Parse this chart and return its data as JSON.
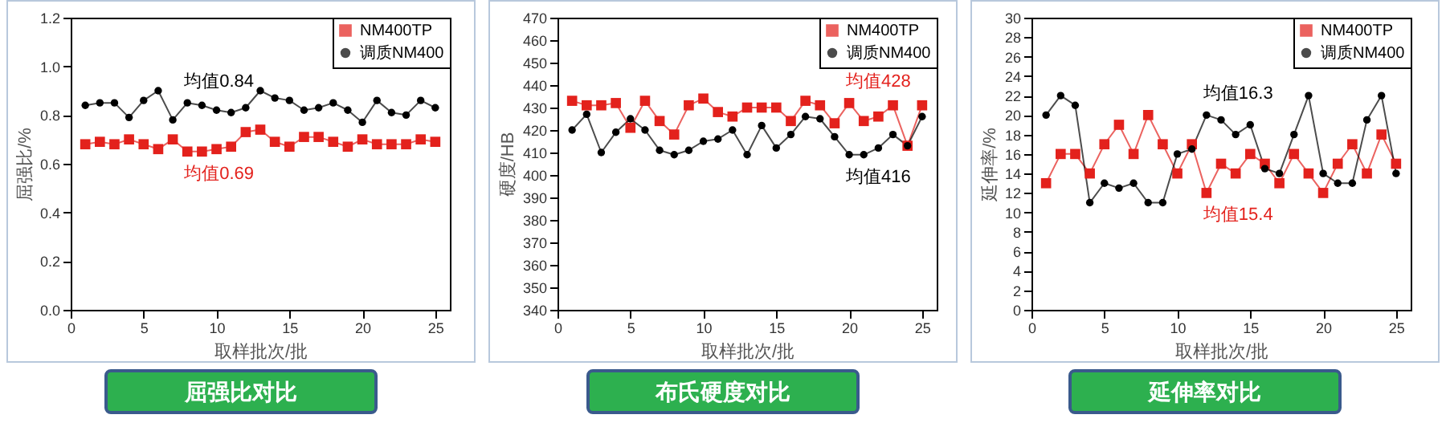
{
  "chart_data": [
    {
      "type": "line",
      "title": "屈强比对比",
      "xlabel": "取样批次/批",
      "ylabel": "屈强比/%",
      "x": [
        1,
        2,
        3,
        4,
        5,
        6,
        7,
        8,
        9,
        10,
        11,
        12,
        13,
        14,
        15,
        16,
        17,
        18,
        19,
        20,
        21,
        22,
        23,
        24,
        25
      ],
      "xlim": [
        0,
        26
      ],
      "xticks": [
        0,
        5,
        10,
        15,
        20,
        25
      ],
      "ylim": [
        0,
        1.2
      ],
      "yticks": [
        {
          "value": 0,
          "label": "0.0"
        },
        0.2,
        0.4,
        0.6,
        0.8,
        {
          "value": 1,
          "label": "1.0"
        },
        1.2
      ],
      "legend": "top right",
      "series": [
        {
          "name": "NM400TP",
          "color": "#e3211c",
          "marker": "square",
          "values": [
            0.68,
            0.69,
            0.68,
            0.7,
            0.68,
            0.66,
            0.7,
            0.65,
            0.65,
            0.66,
            0.67,
            0.73,
            0.74,
            0.69,
            0.67,
            0.71,
            0.71,
            0.69,
            0.67,
            0.7,
            0.68,
            0.68,
            0.68,
            0.7,
            0.69
          ]
        },
        {
          "name": "调质NM400",
          "color": "#000000",
          "marker": "circle",
          "values": [
            0.84,
            0.85,
            0.85,
            0.79,
            0.86,
            0.9,
            0.78,
            0.85,
            0.84,
            0.82,
            0.81,
            0.83,
            0.9,
            0.87,
            0.86,
            0.82,
            0.83,
            0.85,
            0.82,
            0.77,
            0.86,
            0.81,
            0.8,
            0.86,
            0.83
          ]
        }
      ],
      "annotations": [
        "均值0.69",
        "均值0.84"
      ]
    },
    {
      "type": "line",
      "title": "布氏硬度对比",
      "xlabel": "取样批次/批",
      "ylabel": "硬度/HB",
      "x": [
        1,
        2,
        3,
        4,
        5,
        6,
        7,
        8,
        9,
        10,
        11,
        12,
        13,
        14,
        15,
        16,
        17,
        18,
        19,
        20,
        21,
        22,
        23,
        24,
        25
      ],
      "xlim": [
        0,
        26
      ],
      "xticks": [
        0,
        5,
        10,
        15,
        20,
        25
      ],
      "ylim": [
        340,
        470
      ],
      "yticks": [
        340,
        350,
        360,
        370,
        380,
        390,
        400,
        410,
        420,
        430,
        440,
        450,
        460,
        470
      ],
      "legend": "top right",
      "series": [
        {
          "name": "NM400TP",
          "color": "#e3211c",
          "marker": "square",
          "values": [
            433,
            431,
            431,
            432,
            421,
            433,
            424,
            418,
            431,
            434,
            428,
            426,
            430,
            430,
            430,
            424,
            433,
            431,
            423,
            432,
            424,
            426,
            431,
            413,
            431
          ]
        },
        {
          "name": "调质NM400",
          "color": "#000000",
          "marker": "circle",
          "values": [
            420,
            427,
            410,
            419,
            425,
            420,
            411,
            409,
            411,
            415,
            416,
            420,
            409,
            422,
            412,
            418,
            426,
            425,
            417,
            409,
            409,
            412,
            418,
            413,
            426
          ]
        }
      ],
      "annotations": [
        "均值428",
        "均值416"
      ]
    },
    {
      "type": "line",
      "title": "延伸率对比",
      "xlabel": "取样批次/批",
      "ylabel": "延伸率/%",
      "x": [
        1,
        2,
        3,
        4,
        5,
        6,
        7,
        8,
        9,
        10,
        11,
        12,
        13,
        14,
        15,
        16,
        17,
        18,
        19,
        20,
        21,
        22,
        23,
        24,
        25
      ],
      "xlim": [
        0,
        26
      ],
      "xticks": [
        0,
        5,
        10,
        15,
        20,
        25
      ],
      "ylim": [
        0,
        30
      ],
      "yticks": [
        0,
        2,
        4,
        6,
        8,
        10,
        12,
        14,
        16,
        18,
        20,
        22,
        24,
        26,
        28,
        30
      ],
      "legend": "top right",
      "series": [
        {
          "name": "NM400TP",
          "color": "#e3211c",
          "marker": "square",
          "values": [
            13,
            16,
            16,
            14,
            17,
            19,
            16,
            20,
            17,
            14,
            17,
            12,
            15,
            14,
            16,
            15,
            13,
            16,
            14,
            12,
            15,
            17,
            14,
            18,
            15
          ]
        },
        {
          "name": "调质NM400",
          "color": "#000000",
          "marker": "circle",
          "values": [
            20,
            22,
            21,
            11,
            13,
            12.5,
            13,
            11,
            11,
            16,
            16.5,
            20,
            19.5,
            18,
            19,
            14.5,
            14,
            18,
            22,
            14,
            13,
            13,
            19.5,
            22,
            14
          ]
        }
      ],
      "annotations": [
        "均值15.4",
        "均值16.3"
      ]
    }
  ]
}
